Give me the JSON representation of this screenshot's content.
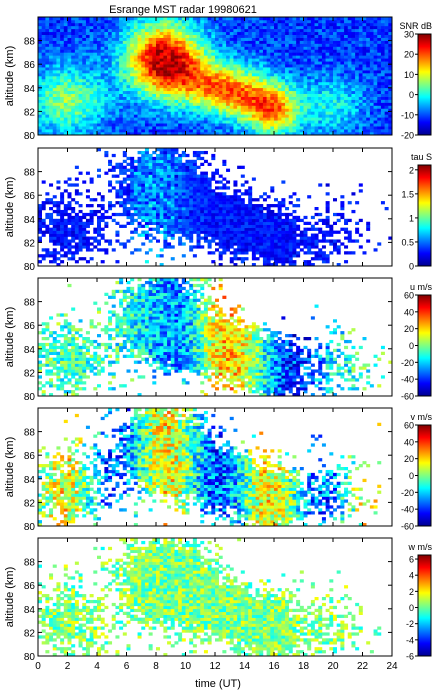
{
  "figure": {
    "title": "Esrange MST radar 19980621",
    "xlabel": "time (UT)",
    "x_ticks": [
      0,
      2,
      4,
      6,
      8,
      10,
      12,
      14,
      16,
      18,
      20,
      22,
      24
    ],
    "xlim": [
      0,
      24
    ]
  },
  "chart_data": [
    {
      "type": "heatmap",
      "ylabel": "altitude (km)",
      "ylim": [
        80,
        90
      ],
      "y_ticks": [
        80,
        82,
        84,
        86,
        88
      ],
      "colorbar": {
        "label": "SNR dB",
        "range": [
          -20,
          30
        ],
        "ticks": [
          -20,
          -10,
          0,
          10,
          20,
          30
        ]
      }
    },
    {
      "type": "heatmap",
      "ylabel": "altitude (km)",
      "ylim": [
        80,
        90
      ],
      "y_ticks": [
        80,
        82,
        84,
        86,
        88
      ],
      "colorbar": {
        "label": "tau S",
        "range": [
          0,
          2.1
        ],
        "ticks": [
          0,
          0.5,
          1,
          1.5,
          2
        ]
      }
    },
    {
      "type": "heatmap",
      "ylabel": "altitude (km)",
      "ylim": [
        80,
        90
      ],
      "y_ticks": [
        80,
        82,
        84,
        86,
        88
      ],
      "colorbar": {
        "label": "u m/s",
        "range": [
          -60,
          60
        ],
        "ticks": [
          -60,
          -40,
          -20,
          0,
          20,
          40,
          60
        ]
      }
    },
    {
      "type": "heatmap",
      "ylabel": "altitude (km)",
      "ylim": [
        80,
        90
      ],
      "y_ticks": [
        80,
        82,
        84,
        86,
        88
      ],
      "colorbar": {
        "label": "v m/s",
        "range": [
          -60,
          60
        ],
        "ticks": [
          -60,
          -40,
          -20,
          0,
          20,
          40,
          60
        ]
      }
    },
    {
      "type": "heatmap",
      "ylabel": "altitude (km)",
      "ylim": [
        80,
        90
      ],
      "y_ticks": [
        80,
        82,
        84,
        86,
        88
      ],
      "colorbar": {
        "label": "w m/s",
        "range": [
          -6,
          6.5
        ],
        "ticks": [
          -6,
          -4,
          -2,
          0,
          2,
          4,
          6
        ]
      }
    }
  ]
}
